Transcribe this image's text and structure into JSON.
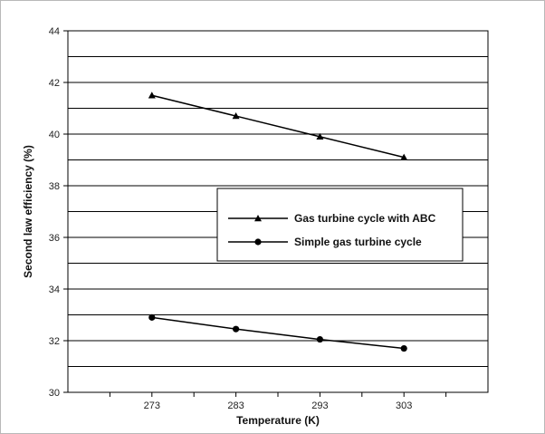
{
  "chart_data": {
    "type": "line",
    "title": "",
    "xlabel": "Temperature (K)",
    "ylabel": "Second law efficiency (%)",
    "x": [
      273,
      283,
      293,
      303
    ],
    "xlim": [
      263,
      313
    ],
    "ylim": [
      30,
      44
    ],
    "x_ticks": [
      "273",
      "283",
      "293",
      "303"
    ],
    "y_ticks": [
      "30",
      "32",
      "34",
      "36",
      "38",
      "40",
      "42",
      "44"
    ],
    "grid": "horizontal",
    "legend_position": "center-right",
    "series": [
      {
        "name": "Gas turbine cycle  with ABC",
        "marker": "triangle",
        "color": "#000000",
        "values": [
          41.5,
          40.7,
          39.9,
          39.1
        ]
      },
      {
        "name": "Simple gas turbine cycle",
        "marker": "circle",
        "color": "#000000",
        "values": [
          32.9,
          32.45,
          32.05,
          31.7
        ]
      }
    ]
  }
}
